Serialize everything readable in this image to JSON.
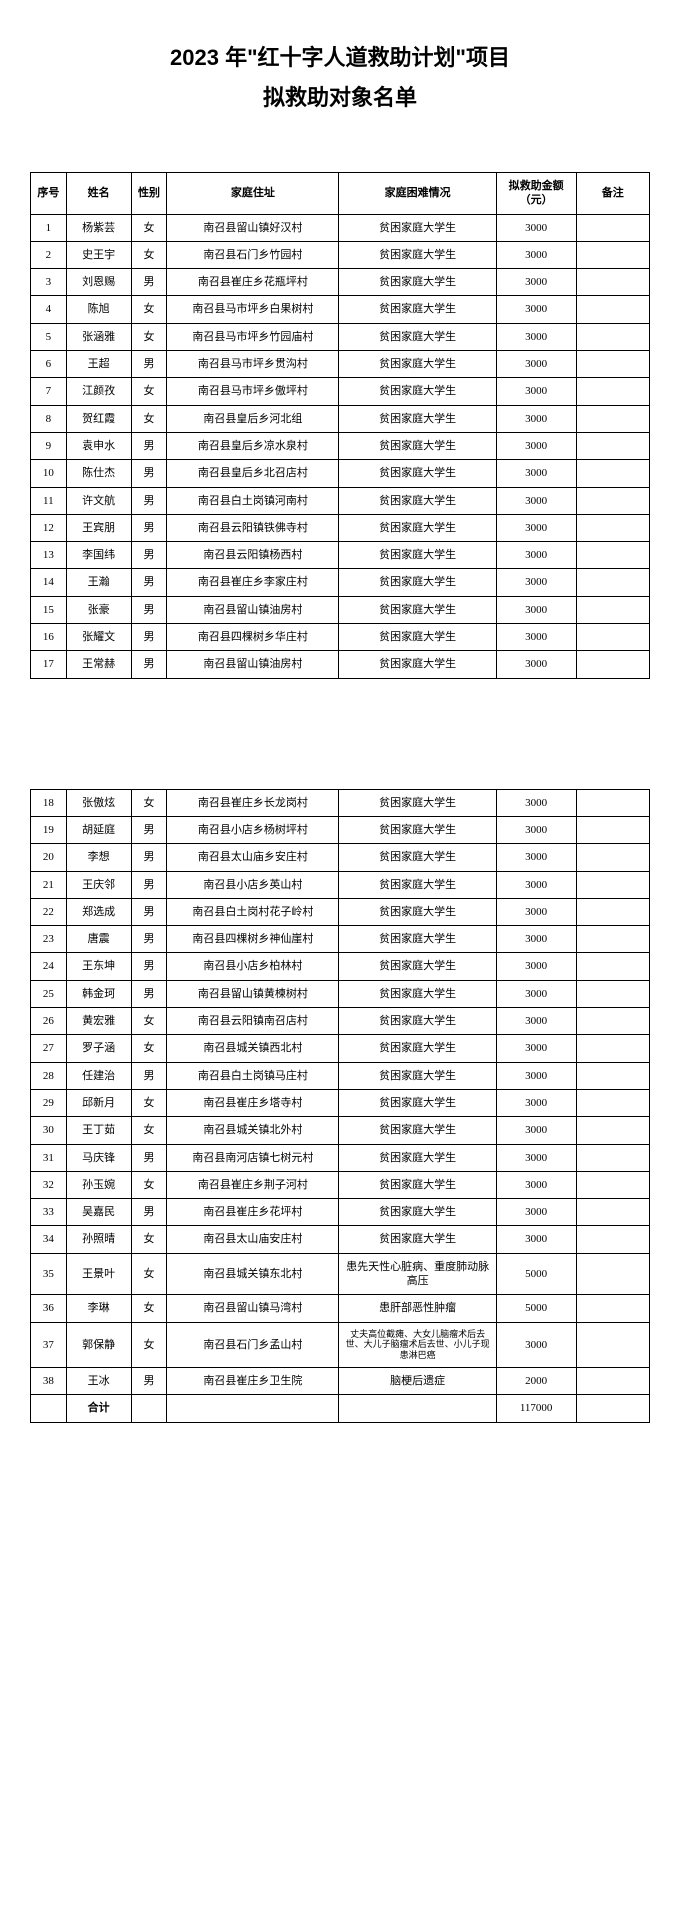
{
  "title": "2023 年\"红十字人道救助计划\"项目",
  "subtitle": "拟救助对象名单",
  "headers": {
    "seq": "序号",
    "name": "姓名",
    "sex": "性别",
    "addr": "家庭住址",
    "diff": "家庭困难情况",
    "amt": "拟救助金额（元）",
    "note": "备注"
  },
  "rows1": [
    {
      "seq": "1",
      "name": "杨紫芸",
      "sex": "女",
      "addr": "南召县留山镇好汉村",
      "diff": "贫困家庭大学生",
      "amt": "3000",
      "note": ""
    },
    {
      "seq": "2",
      "name": "史王宇",
      "sex": "女",
      "addr": "南召县石门乡竹园村",
      "diff": "贫困家庭大学生",
      "amt": "3000",
      "note": ""
    },
    {
      "seq": "3",
      "name": "刘恩赐",
      "sex": "男",
      "addr": "南召县崔庄乡花瓶坪村",
      "diff": "贫困家庭大学生",
      "amt": "3000",
      "note": ""
    },
    {
      "seq": "4",
      "name": "陈旭",
      "sex": "女",
      "addr": "南召县马市坪乡白果树村",
      "diff": "贫困家庭大学生",
      "amt": "3000",
      "note": ""
    },
    {
      "seq": "5",
      "name": "张涵雅",
      "sex": "女",
      "addr": "南召县马市坪乡竹园庙村",
      "diff": "贫困家庭大学生",
      "amt": "3000",
      "note": ""
    },
    {
      "seq": "6",
      "name": "王超",
      "sex": "男",
      "addr": "南召县马市坪乡贯沟村",
      "diff": "贫困家庭大学生",
      "amt": "3000",
      "note": ""
    },
    {
      "seq": "7",
      "name": "江颜孜",
      "sex": "女",
      "addr": "南召县马市坪乡傲坪村",
      "diff": "贫困家庭大学生",
      "amt": "3000",
      "note": ""
    },
    {
      "seq": "8",
      "name": "贺红霞",
      "sex": "女",
      "addr": "南召县皇后乡河北组",
      "diff": "贫困家庭大学生",
      "amt": "3000",
      "note": ""
    },
    {
      "seq": "9",
      "name": "袁申水",
      "sex": "男",
      "addr": "南召县皇后乡凉水泉村",
      "diff": "贫困家庭大学生",
      "amt": "3000",
      "note": ""
    },
    {
      "seq": "10",
      "name": "陈仕杰",
      "sex": "男",
      "addr": "南召县皇后乡北召店村",
      "diff": "贫困家庭大学生",
      "amt": "3000",
      "note": ""
    },
    {
      "seq": "11",
      "name": "许文航",
      "sex": "男",
      "addr": "南召县白土岗镇河南村",
      "diff": "贫困家庭大学生",
      "amt": "3000",
      "note": ""
    },
    {
      "seq": "12",
      "name": "王宾朋",
      "sex": "男",
      "addr": "南召县云阳镇铁佛寺村",
      "diff": "贫困家庭大学生",
      "amt": "3000",
      "note": ""
    },
    {
      "seq": "13",
      "name": "李国纬",
      "sex": "男",
      "addr": "南召县云阳镇杨西村",
      "diff": "贫困家庭大学生",
      "amt": "3000",
      "note": ""
    },
    {
      "seq": "14",
      "name": "王瀚",
      "sex": "男",
      "addr": "南召县崔庄乡李家庄村",
      "diff": "贫困家庭大学生",
      "amt": "3000",
      "note": ""
    },
    {
      "seq": "15",
      "name": "张豪",
      "sex": "男",
      "addr": "南召县留山镇油房村",
      "diff": "贫困家庭大学生",
      "amt": "3000",
      "note": ""
    },
    {
      "seq": "16",
      "name": "张耀文",
      "sex": "男",
      "addr": "南召县四棵树乡华庄村",
      "diff": "贫困家庭大学生",
      "amt": "3000",
      "note": ""
    },
    {
      "seq": "17",
      "name": "王常赫",
      "sex": "男",
      "addr": "南召县留山镇油房村",
      "diff": "贫困家庭大学生",
      "amt": "3000",
      "note": ""
    }
  ],
  "rows2": [
    {
      "seq": "18",
      "name": "张傲炫",
      "sex": "女",
      "addr": "南召县崔庄乡长龙岗村",
      "diff": "贫困家庭大学生",
      "amt": "3000",
      "note": ""
    },
    {
      "seq": "19",
      "name": "胡延庭",
      "sex": "男",
      "addr": "南召县小店乡杨树坪村",
      "diff": "贫困家庭大学生",
      "amt": "3000",
      "note": ""
    },
    {
      "seq": "20",
      "name": "李想",
      "sex": "男",
      "addr": "南召县太山庙乡安庄村",
      "diff": "贫困家庭大学生",
      "amt": "3000",
      "note": ""
    },
    {
      "seq": "21",
      "name": "王庆邻",
      "sex": "男",
      "addr": "南召县小店乡英山村",
      "diff": "贫困家庭大学生",
      "amt": "3000",
      "note": ""
    },
    {
      "seq": "22",
      "name": "郑选成",
      "sex": "男",
      "addr": "南召县白土岗村花子岭村",
      "diff": "贫困家庭大学生",
      "amt": "3000",
      "note": ""
    },
    {
      "seq": "23",
      "name": "唐震",
      "sex": "男",
      "addr": "南召县四棵树乡神仙崖村",
      "diff": "贫困家庭大学生",
      "amt": "3000",
      "note": ""
    },
    {
      "seq": "24",
      "name": "王东坤",
      "sex": "男",
      "addr": "南召县小店乡柏林村",
      "diff": "贫困家庭大学生",
      "amt": "3000",
      "note": ""
    },
    {
      "seq": "25",
      "name": "韩金珂",
      "sex": "男",
      "addr": "南召县留山镇黄楝树村",
      "diff": "贫困家庭大学生",
      "amt": "3000",
      "note": ""
    },
    {
      "seq": "26",
      "name": "黄宏雅",
      "sex": "女",
      "addr": "南召县云阳镇南召店村",
      "diff": "贫困家庭大学生",
      "amt": "3000",
      "note": ""
    },
    {
      "seq": "27",
      "name": "罗子涵",
      "sex": "女",
      "addr": "南召县城关镇西北村",
      "diff": "贫困家庭大学生",
      "amt": "3000",
      "note": ""
    },
    {
      "seq": "28",
      "name": "任建治",
      "sex": "男",
      "addr": "南召县白土岗镇马庄村",
      "diff": "贫困家庭大学生",
      "amt": "3000",
      "note": ""
    },
    {
      "seq": "29",
      "name": "邱新月",
      "sex": "女",
      "addr": "南召县崔庄乡塔寺村",
      "diff": "贫困家庭大学生",
      "amt": "3000",
      "note": ""
    },
    {
      "seq": "30",
      "name": "王丁茹",
      "sex": "女",
      "addr": "南召县城关镇北外村",
      "diff": "贫困家庭大学生",
      "amt": "3000",
      "note": ""
    },
    {
      "seq": "31",
      "name": "马庆锋",
      "sex": "男",
      "addr": "南召县南河店镇七树元村",
      "diff": "贫困家庭大学生",
      "amt": "3000",
      "note": ""
    },
    {
      "seq": "32",
      "name": "孙玉婉",
      "sex": "女",
      "addr": "南召县崔庄乡荆子河村",
      "diff": "贫困家庭大学生",
      "amt": "3000",
      "note": ""
    },
    {
      "seq": "33",
      "name": "吴嘉民",
      "sex": "男",
      "addr": "南召县崔庄乡花坪村",
      "diff": "贫困家庭大学生",
      "amt": "3000",
      "note": ""
    },
    {
      "seq": "34",
      "name": "孙照晴",
      "sex": "女",
      "addr": "南召县太山庙安庄村",
      "diff": "贫困家庭大学生",
      "amt": "3000",
      "note": ""
    },
    {
      "seq": "35",
      "name": "王景叶",
      "sex": "女",
      "addr": "南召县城关镇东北村",
      "diff": "患先天性心脏病、重度肺动脉高压",
      "amt": "5000",
      "note": ""
    },
    {
      "seq": "36",
      "name": "李琳",
      "sex": "女",
      "addr": "南召县留山镇马湾村",
      "diff": "患肝部恶性肿瘤",
      "amt": "5000",
      "note": ""
    },
    {
      "seq": "37",
      "name": "郭保静",
      "sex": "女",
      "addr": "南召县石门乡孟山村",
      "diff": "丈夫高位截瘫、大女儿脑瘤术后去世、大儿子脑瘤术后去世、小儿子现患淋巴癌",
      "amt": "3000",
      "note": "",
      "small": true
    },
    {
      "seq": "38",
      "name": "王冰",
      "sex": "男",
      "addr": "南召县崔庄乡卫生院",
      "diff": "脑梗后遗症",
      "amt": "2000",
      "note": ""
    }
  ],
  "total": {
    "label": "合计",
    "amt": "117000"
  }
}
